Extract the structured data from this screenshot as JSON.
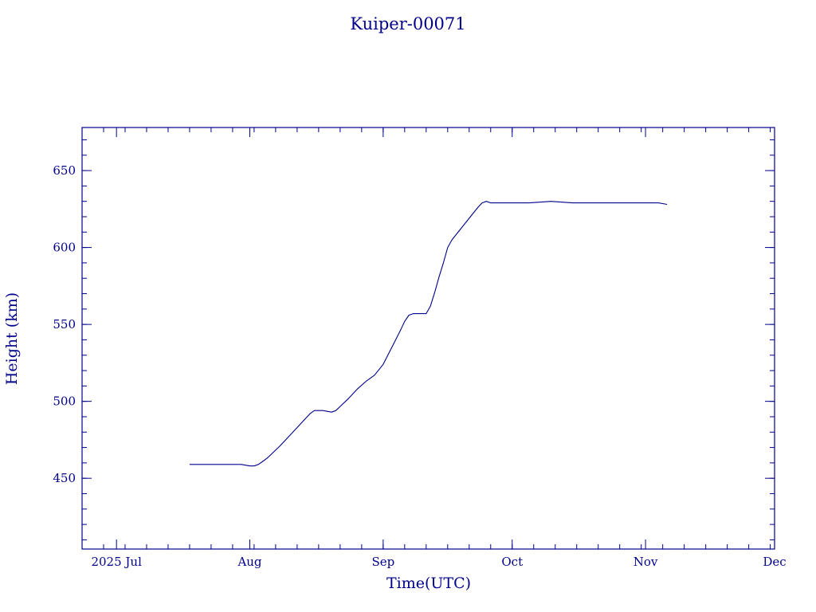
{
  "chart_data": {
    "type": "line",
    "title": "Kuiper-00071",
    "xlabel": "Time(UTC)",
    "ylabel": "Height (km)",
    "x_tick_labels": [
      "2025 Jul",
      "Aug",
      "Sep",
      "Oct",
      "Nov",
      "Dec"
    ],
    "x_tick_dates": [
      "2025-07-01",
      "2025-08-01",
      "2025-09-01",
      "2025-10-01",
      "2025-11-01",
      "2025-12-01"
    ],
    "xlim": [
      "2025-06-23",
      "2025-12-01"
    ],
    "y_ticks": [
      450,
      500,
      550,
      600,
      650
    ],
    "y_tick_labels": [
      "450",
      "500",
      "550",
      "600",
      "650"
    ],
    "ylim": [
      404,
      678
    ],
    "grid": false,
    "line_color": "#00008b",
    "series": [
      {
        "x": [
          "2025-07-18",
          "2025-07-20",
          "2025-07-22",
          "2025-07-26",
          "2025-07-30",
          "2025-08-01",
          "2025-08-02",
          "2025-08-03",
          "2025-08-04",
          "2025-08-05",
          "2025-08-08",
          "2025-08-10",
          "2025-08-12",
          "2025-08-14",
          "2025-08-15",
          "2025-08-16",
          "2025-08-18",
          "2025-08-20",
          "2025-08-21",
          "2025-08-24",
          "2025-08-26",
          "2025-08-28",
          "2025-08-29",
          "2025-08-30",
          "2025-09-01",
          "2025-09-03",
          "2025-09-05",
          "2025-09-06",
          "2025-09-07",
          "2025-09-08",
          "2025-09-09",
          "2025-09-10",
          "2025-09-11",
          "2025-09-12",
          "2025-09-13",
          "2025-09-14",
          "2025-09-15",
          "2025-09-16",
          "2025-09-17",
          "2025-09-19",
          "2025-09-21",
          "2025-09-23",
          "2025-09-24",
          "2025-09-25",
          "2025-09-26",
          "2025-09-27",
          "2025-09-30",
          "2025-10-05",
          "2025-10-10",
          "2025-10-15",
          "2025-10-20",
          "2025-10-25",
          "2025-10-30",
          "2025-11-04",
          "2025-11-06"
        ],
        "y": [
          459,
          459,
          459,
          459,
          459,
          458,
          458,
          459,
          461,
          463,
          471,
          477,
          483,
          489,
          492,
          494,
          494,
          493,
          494,
          502,
          508,
          513,
          515,
          517,
          524,
          535,
          546,
          552,
          556,
          557,
          557,
          557,
          557,
          562,
          571,
          581,
          590,
          600,
          605,
          612,
          619,
          626,
          629,
          630,
          629,
          629,
          629,
          629,
          630,
          629,
          629,
          629,
          629,
          629,
          628
        ]
      }
    ]
  }
}
